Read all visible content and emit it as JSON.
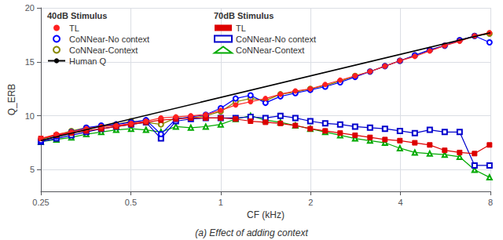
{
  "chart_data": {
    "type": "line",
    "subtitle": "(a) Effect of adding context",
    "xlabel": "CF (kHz)",
    "ylabel": "Q_ERB",
    "log": "x",
    "grid": true,
    "legend": "upper left",
    "xlim": [
      0.25,
      8
    ],
    "xticks": [
      0.25,
      0.5,
      1,
      2,
      4,
      8
    ],
    "ylim": [
      3,
      20
    ],
    "yticks": [
      5,
      10,
      15,
      20
    ],
    "x": [
      0.25,
      0.2818,
      0.3162,
      0.3548,
      0.3981,
      0.4467,
      0.5012,
      0.5623,
      0.631,
      0.7079,
      0.7943,
      0.8913,
      1.0,
      1.122,
      1.2589,
      1.4125,
      1.5849,
      1.7783,
      1.9953,
      2.2387,
      2.5119,
      2.8184,
      3.1623,
      3.5481,
      3.9811,
      4.4668,
      5.0119,
      5.6234,
      6.3096,
      7.0795,
      7.9433
    ],
    "legend_groups": [
      {
        "title": "40dB Stimulus",
        "series": [
          {
            "name": "TL",
            "color": "#ff2020",
            "marker": "circle",
            "line_style": "solid",
            "values": [
              7.9,
              8.3,
              8.5,
              8.8,
              9.0,
              9.1,
              9.3,
              9.5,
              9.8,
              9.9,
              10.0,
              10.1,
              10.5,
              11.0,
              11.3,
              11.6,
              12.0,
              12.3,
              12.5,
              12.9,
              13.3,
              13.7,
              14.1,
              14.6,
              15.1,
              15.5,
              16.0,
              16.5,
              16.9,
              17.4,
              17.7
            ]
          },
          {
            "name": "CoNNear-No context",
            "color": "#0000ff",
            "marker": "emptyCircle",
            "line_style": "solid",
            "values": [
              7.7,
              8.1,
              8.5,
              8.9,
              9.1,
              9.2,
              9.4,
              9.6,
              8.3,
              9.7,
              9.9,
              10.1,
              10.7,
              11.6,
              11.9,
              11.2,
              11.8,
              12.1,
              12.4,
              12.7,
              13.1,
              13.6,
              14.1,
              14.6,
              15.1,
              15.6,
              16.1,
              16.5,
              17.0,
              17.4,
              16.8
            ]
          },
          {
            "name": "CoNNear-Context",
            "color": "#888800",
            "marker": "emptyCircle",
            "line_style": "solid",
            "values": [
              7.8,
              8.2,
              8.6,
              8.9,
              9.0,
              9.2,
              9.5,
              9.4,
              9.2,
              9.8,
              9.8,
              10.0,
              10.4,
              11.3,
              11.6,
              11.4,
              12.0,
              12.2,
              12.5,
              12.8,
              13.2,
              13.7,
              14.1,
              14.6,
              15.1,
              15.6,
              16.1,
              16.5,
              17.0,
              17.4,
              17.6
            ]
          },
          {
            "name": "Human Q",
            "color": "#000000",
            "marker": "none",
            "line_style": "solid",
            "x": [
              0.25,
              8.0
            ],
            "values": [
              7.7,
              17.7
            ]
          }
        ]
      },
      {
        "title": "70dB Stimulus",
        "series": [
          {
            "name": "TL",
            "color": "#dd0000",
            "marker": "rect",
            "line_style": "solid",
            "values": [
              7.9,
              8.2,
              8.4,
              8.6,
              8.8,
              9.0,
              9.2,
              9.4,
              9.6,
              9.7,
              9.8,
              9.8,
              9.8,
              9.7,
              9.5,
              9.4,
              9.3,
              9.1,
              8.8,
              8.6,
              8.4,
              8.2,
              8.0,
              7.8,
              7.7,
              7.5,
              7.3,
              6.8,
              6.6,
              6.5,
              7.3
            ]
          },
          {
            "name": "CoNNear-No context",
            "color": "#0000cc",
            "marker": "emptyRect",
            "line_style": "solid",
            "values": [
              7.6,
              7.9,
              8.2,
              8.5,
              8.8,
              9.0,
              9.2,
              9.4,
              7.9,
              9.5,
              9.7,
              9.8,
              9.8,
              9.8,
              9.9,
              9.8,
              10.0,
              9.8,
              9.5,
              9.3,
              9.2,
              9.0,
              8.9,
              8.8,
              8.6,
              8.4,
              8.7,
              8.5,
              8.5,
              5.4,
              5.4
            ]
          },
          {
            "name": "CoNNear-Context",
            "color": "#00aa00",
            "marker": "emptyTriangle",
            "line_style": "solid",
            "values": [
              7.6,
              7.8,
              8.0,
              8.3,
              8.5,
              8.7,
              8.8,
              8.7,
              8.5,
              9.0,
              8.9,
              9.0,
              9.2,
              9.7,
              10.0,
              9.6,
              9.4,
              9.1,
              8.8,
              8.5,
              8.2,
              7.9,
              7.7,
              7.5,
              7.0,
              6.6,
              6.5,
              6.4,
              6.2,
              5.0,
              4.3
            ]
          }
        ]
      }
    ]
  }
}
